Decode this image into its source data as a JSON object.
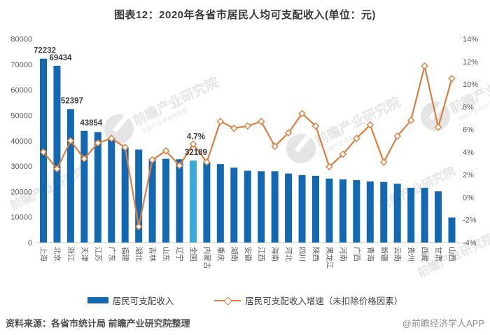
{
  "title": "图表12：2020年各省市居民人均可支配收入(单位：元)",
  "legend": {
    "bar_label": "居民可支配收入",
    "line_label": "居民可支配收入增速（未扣除价格因素）"
  },
  "footer": {
    "source": "资料来源：各省市统计局 前瞻产业研究院整理",
    "brand": "@前瞻经济学人APP"
  },
  "watermark": {
    "text": "前瞻产业研究院",
    "subtext": "中国产业咨询领导者"
  },
  "colors": {
    "bar": "#1268b1",
    "bar_highlight": "#38aadc",
    "line": "#dc7e3f",
    "marker_fill": "#ffffff",
    "axis_text": "#595959",
    "data_label": "#3f3f3f",
    "axis_line": "#d0d0d0",
    "watermark": "#dcdcdc"
  },
  "chart_data": {
    "type": "bar",
    "title": "图表12：2020年各省市居民人均可支配收入(单位：元)",
    "categories": [
      "上海",
      "北京",
      "浙江",
      "天津",
      "江苏",
      "广东",
      "福建",
      "湖北",
      "吉林",
      "山东",
      "辽宁",
      "全国",
      "内蒙古",
      "重庆",
      "湖南",
      "安徽",
      "江西",
      "海南",
      "河北",
      "四川",
      "陕西",
      "黑龙江",
      "河南",
      "广西",
      "青海",
      "新疆",
      "云南",
      "贵州",
      "西藏",
      "甘肃",
      "山西"
    ],
    "series": [
      {
        "name": "居民可支配收入",
        "type": "bar",
        "axis": "left",
        "values": [
          72232,
          69434,
          52397,
          43854,
          43390,
          41029,
          37202,
          36500,
          32900,
          32886,
          32700,
          32189,
          31400,
          30800,
          29400,
          28200,
          28000,
          28000,
          27100,
          26500,
          26200,
          25100,
          24800,
          24500,
          24000,
          23800,
          23100,
          21500,
          21500,
          20100,
          9800
        ]
      },
      {
        "name": "居民可支配收入增速（未扣除价格因素）",
        "type": "line",
        "axis": "right",
        "values": [
          4.0,
          2.5,
          5.0,
          3.4,
          4.8,
          5.2,
          4.4,
          -2.6,
          3.3,
          4.1,
          2.8,
          4.7,
          3.1,
          6.7,
          6.1,
          6.3,
          6.7,
          4.5,
          5.7,
          7.4,
          6.3,
          2.7,
          3.8,
          5.2,
          6.4,
          3.1,
          5.4,
          6.8,
          11.6,
          6.2,
          10.5
        ]
      }
    ],
    "highlight_category": "全国",
    "left_axis": {
      "min": 0,
      "max": 80000,
      "step": 10000,
      "ticks": [
        "0",
        "10000",
        "20000",
        "30000",
        "40000",
        "50000",
        "60000",
        "70000",
        "80000"
      ]
    },
    "right_axis": {
      "min": -4,
      "max": 14,
      "step": 2,
      "ticks": [
        "-4%",
        "-2%",
        "0%",
        "2%",
        "4%",
        "6%",
        "8%",
        "10%",
        "12%",
        "14%"
      ]
    },
    "point_labels": [
      {
        "category": "上海",
        "series": "bar",
        "text": "72232",
        "dx": 2
      },
      {
        "category": "北京",
        "series": "bar",
        "text": "69434",
        "dx": 5
      },
      {
        "category": "浙江",
        "series": "bar",
        "text": "52397",
        "dx": 2
      },
      {
        "category": "天津",
        "series": "bar",
        "text": "43854",
        "dx": 10
      },
      {
        "category": "全国",
        "series": "line",
        "text": "4.7%",
        "dx": 4
      },
      {
        "category": "全国",
        "series": "bar",
        "text": "32189",
        "dx": 4
      }
    ],
    "grid": "off",
    "legend_position": "bottom"
  }
}
